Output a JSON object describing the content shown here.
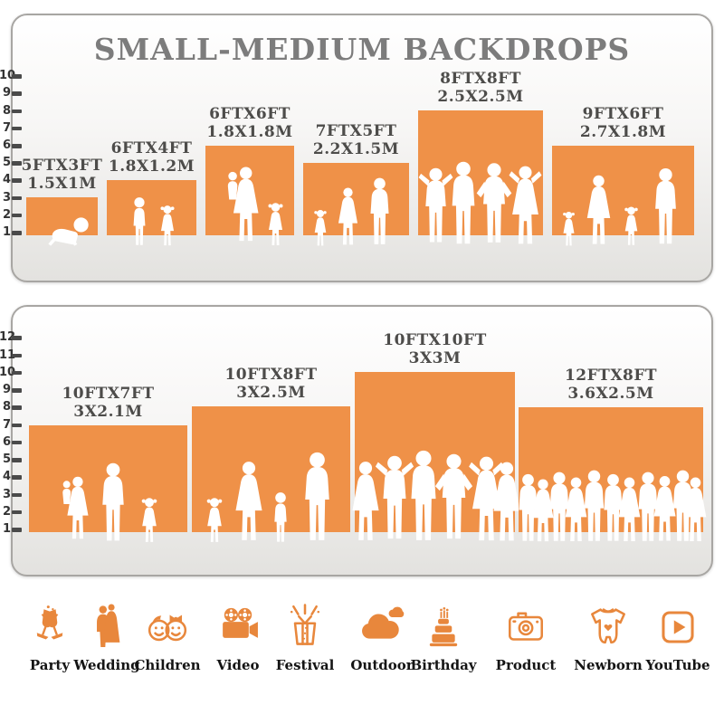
{
  "title": "SMALL-MEDIUM BACKDROPS",
  "colors": {
    "bar_orange": "#EF9148",
    "icon_orange": "#E8873C",
    "title_gray": "#7C7C7C",
    "label_gray": "#4D4C4A",
    "tick_color": "#333333"
  },
  "panels": [
    {
      "name": "small-backdrops-panel",
      "ruler_ticks": [
        1,
        2,
        3,
        4,
        5,
        6,
        7,
        8,
        9,
        10
      ],
      "bars": [
        {
          "size_ft": "5FTX3FT",
          "size_m": "1.5X1M",
          "height_ft": 3,
          "figures": [
            "baby-crawl"
          ]
        },
        {
          "size_ft": "6FTX4FT",
          "size_m": "1.8X1.2M",
          "height_ft": 4,
          "figures": [
            "boy",
            "girl"
          ]
        },
        {
          "size_ft": "6FTX6FT",
          "size_m": "1.8X1.8M",
          "height_ft": 6,
          "figures": [
            "woman-holding-child",
            "girl"
          ]
        },
        {
          "size_ft": "7FTX5FT",
          "size_m": "2.2X1.5M",
          "height_ft": 5,
          "figures": [
            "girl",
            "woman",
            "man"
          ]
        },
        {
          "size_ft": "8FTX8FT",
          "size_m": "2.5X2.5M",
          "height_ft": 8,
          "figures": [
            "man-arms-up",
            "man",
            "man-hands-on-hips",
            "woman-arms-up"
          ]
        },
        {
          "size_ft": "9FTX6FT",
          "size_m": "2.7X1.8M",
          "height_ft": 6,
          "figures": [
            "girl",
            "woman",
            "girl",
            "man"
          ]
        }
      ]
    },
    {
      "name": "medium-backdrops-panel",
      "ruler_ticks": [
        1,
        2,
        3,
        4,
        5,
        6,
        7,
        8,
        9,
        10,
        11,
        12
      ],
      "bars": [
        {
          "size_ft": "10FTX7FT",
          "size_m": "3X2.1M",
          "height_ft": 7,
          "figures": [
            "woman-holding-child",
            "man",
            "girl"
          ]
        },
        {
          "size_ft": "10FTX8FT",
          "size_m": "3X2.5M",
          "height_ft": 8,
          "figures": [
            "girl",
            "woman",
            "boy",
            "man"
          ]
        },
        {
          "size_ft": "10FTX10FT",
          "size_m": "3X3M",
          "height_ft": 10,
          "figures": [
            "woman",
            "man-arms-up",
            "man",
            "man-hands-on-hips",
            "woman-arms-up",
            "woman"
          ]
        },
        {
          "size_ft": "12FTX8FT",
          "size_m": "3.6X2.5M",
          "height_ft": 8,
          "figures": [
            "man",
            "woman",
            "man",
            "woman",
            "man",
            "man",
            "woman",
            "man",
            "woman",
            "man",
            "woman"
          ]
        }
      ]
    }
  ],
  "categories": [
    {
      "label": "Party",
      "icon": "party-glasses-icon"
    },
    {
      "label": "Wedding",
      "icon": "wedding-couple-icon"
    },
    {
      "label": "Children",
      "icon": "children-faces-icon"
    },
    {
      "label": "Video",
      "icon": "video-camera-icon"
    },
    {
      "label": "Festival",
      "icon": "festival-gift-icon"
    },
    {
      "label": "Outdoor",
      "icon": "outdoor-cloud-icon"
    },
    {
      "label": "Birthday",
      "icon": "birthday-cake-icon"
    },
    {
      "label": "Product",
      "icon": "product-camera-icon"
    },
    {
      "label": "Newborn",
      "icon": "newborn-onesie-icon"
    },
    {
      "label": "YouTube",
      "icon": "youtube-play-icon"
    }
  ]
}
